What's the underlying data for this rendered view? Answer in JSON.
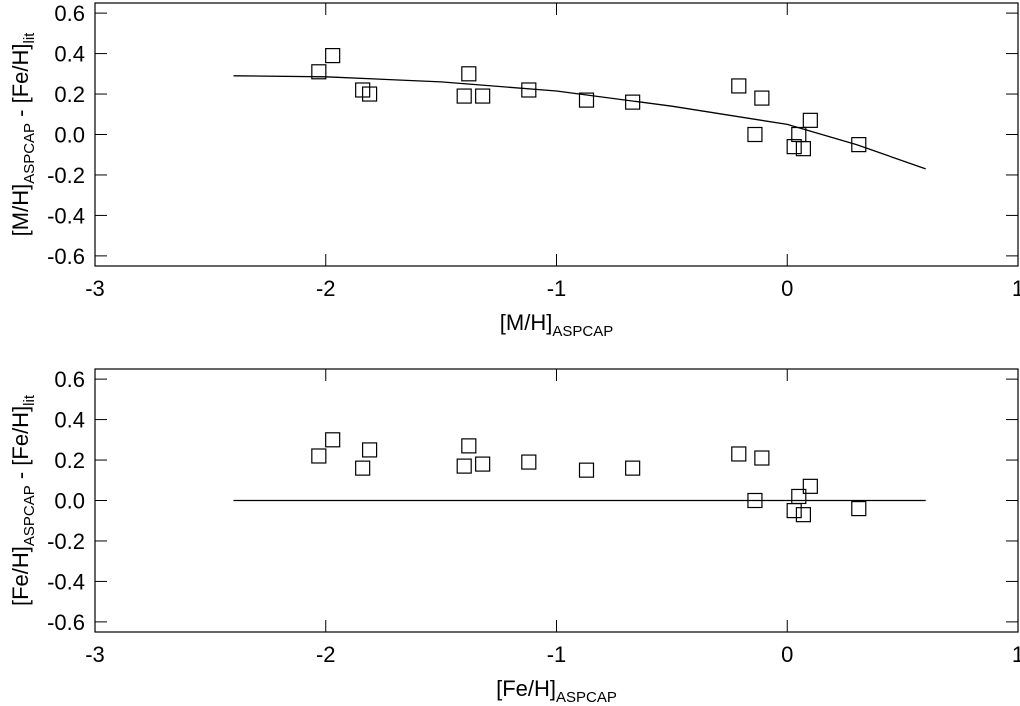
{
  "chart_data": [
    {
      "type": "scatter",
      "x_label": [
        {
          "text": "[M/H]"
        },
        {
          "text": "ASPCAP",
          "sub": true
        }
      ],
      "y_label": [
        {
          "text": "[M/H]"
        },
        {
          "text": "ASPCAP",
          "sub": true
        },
        {
          "text": " - [Fe/H]"
        },
        {
          "text": "lit",
          "sub": true
        }
      ],
      "xlim": [
        -3,
        1
      ],
      "xticks": [
        -3,
        -2,
        -1,
        0,
        1
      ],
      "ylim": [
        -0.65,
        0.65
      ],
      "yticks": [
        -0.6,
        -0.4,
        -0.2,
        {
          "value": 0,
          "label": "0.0"
        },
        0.2,
        0.4,
        0.6
      ],
      "points": {
        "x": [
          -2.03,
          -1.97,
          -1.84,
          -1.81,
          -1.4,
          -1.38,
          -1.32,
          -1.12,
          -0.87,
          -0.67,
          -0.21,
          -0.11,
          -0.14,
          0.03,
          0.05,
          0.07,
          0.1,
          0.31
        ],
        "y": [
          0.31,
          0.39,
          0.22,
          0.2,
          0.19,
          0.3,
          0.19,
          0.22,
          0.17,
          0.16,
          0.24,
          0.18,
          0.0,
          -0.06,
          0.0,
          -0.07,
          0.07,
          -0.05
        ]
      },
      "fit": {
        "x": [
          -2.4,
          -2.0,
          -1.5,
          -1.0,
          -0.5,
          0.0,
          0.3,
          0.6
        ],
        "y": [
          0.29,
          0.285,
          0.26,
          0.215,
          0.14,
          0.05,
          -0.05,
          -0.17
        ]
      }
    },
    {
      "type": "scatter",
      "x_label": [
        {
          "text": "[Fe/H]"
        },
        {
          "text": "ASPCAP",
          "sub": true
        }
      ],
      "y_label": [
        {
          "text": "[Fe/H]"
        },
        {
          "text": "ASPCAP",
          "sub": true
        },
        {
          "text": " - [Fe/H]"
        },
        {
          "text": "lit",
          "sub": true
        }
      ],
      "xlim": [
        -3,
        1
      ],
      "xticks": [
        -3,
        -2,
        -1,
        0,
        1
      ],
      "ylim": [
        -0.65,
        0.65
      ],
      "yticks": [
        -0.6,
        -0.4,
        -0.2,
        {
          "value": 0,
          "label": "0.0"
        },
        0.2,
        0.4,
        0.6
      ],
      "points": {
        "x": [
          -2.03,
          -1.97,
          -1.84,
          -1.81,
          -1.4,
          -1.38,
          -1.32,
          -1.12,
          -0.87,
          -0.67,
          -0.21,
          -0.11,
          -0.14,
          0.03,
          0.05,
          0.07,
          0.1,
          0.31
        ],
        "y": [
          0.22,
          0.3,
          0.16,
          0.25,
          0.17,
          0.27,
          0.18,
          0.19,
          0.15,
          0.16,
          0.23,
          0.21,
          0.0,
          -0.05,
          0.02,
          -0.07,
          0.07,
          -0.04
        ]
      },
      "fit": {
        "x": [
          -2.4,
          0.6
        ],
        "y": [
          0,
          0
        ]
      }
    }
  ]
}
